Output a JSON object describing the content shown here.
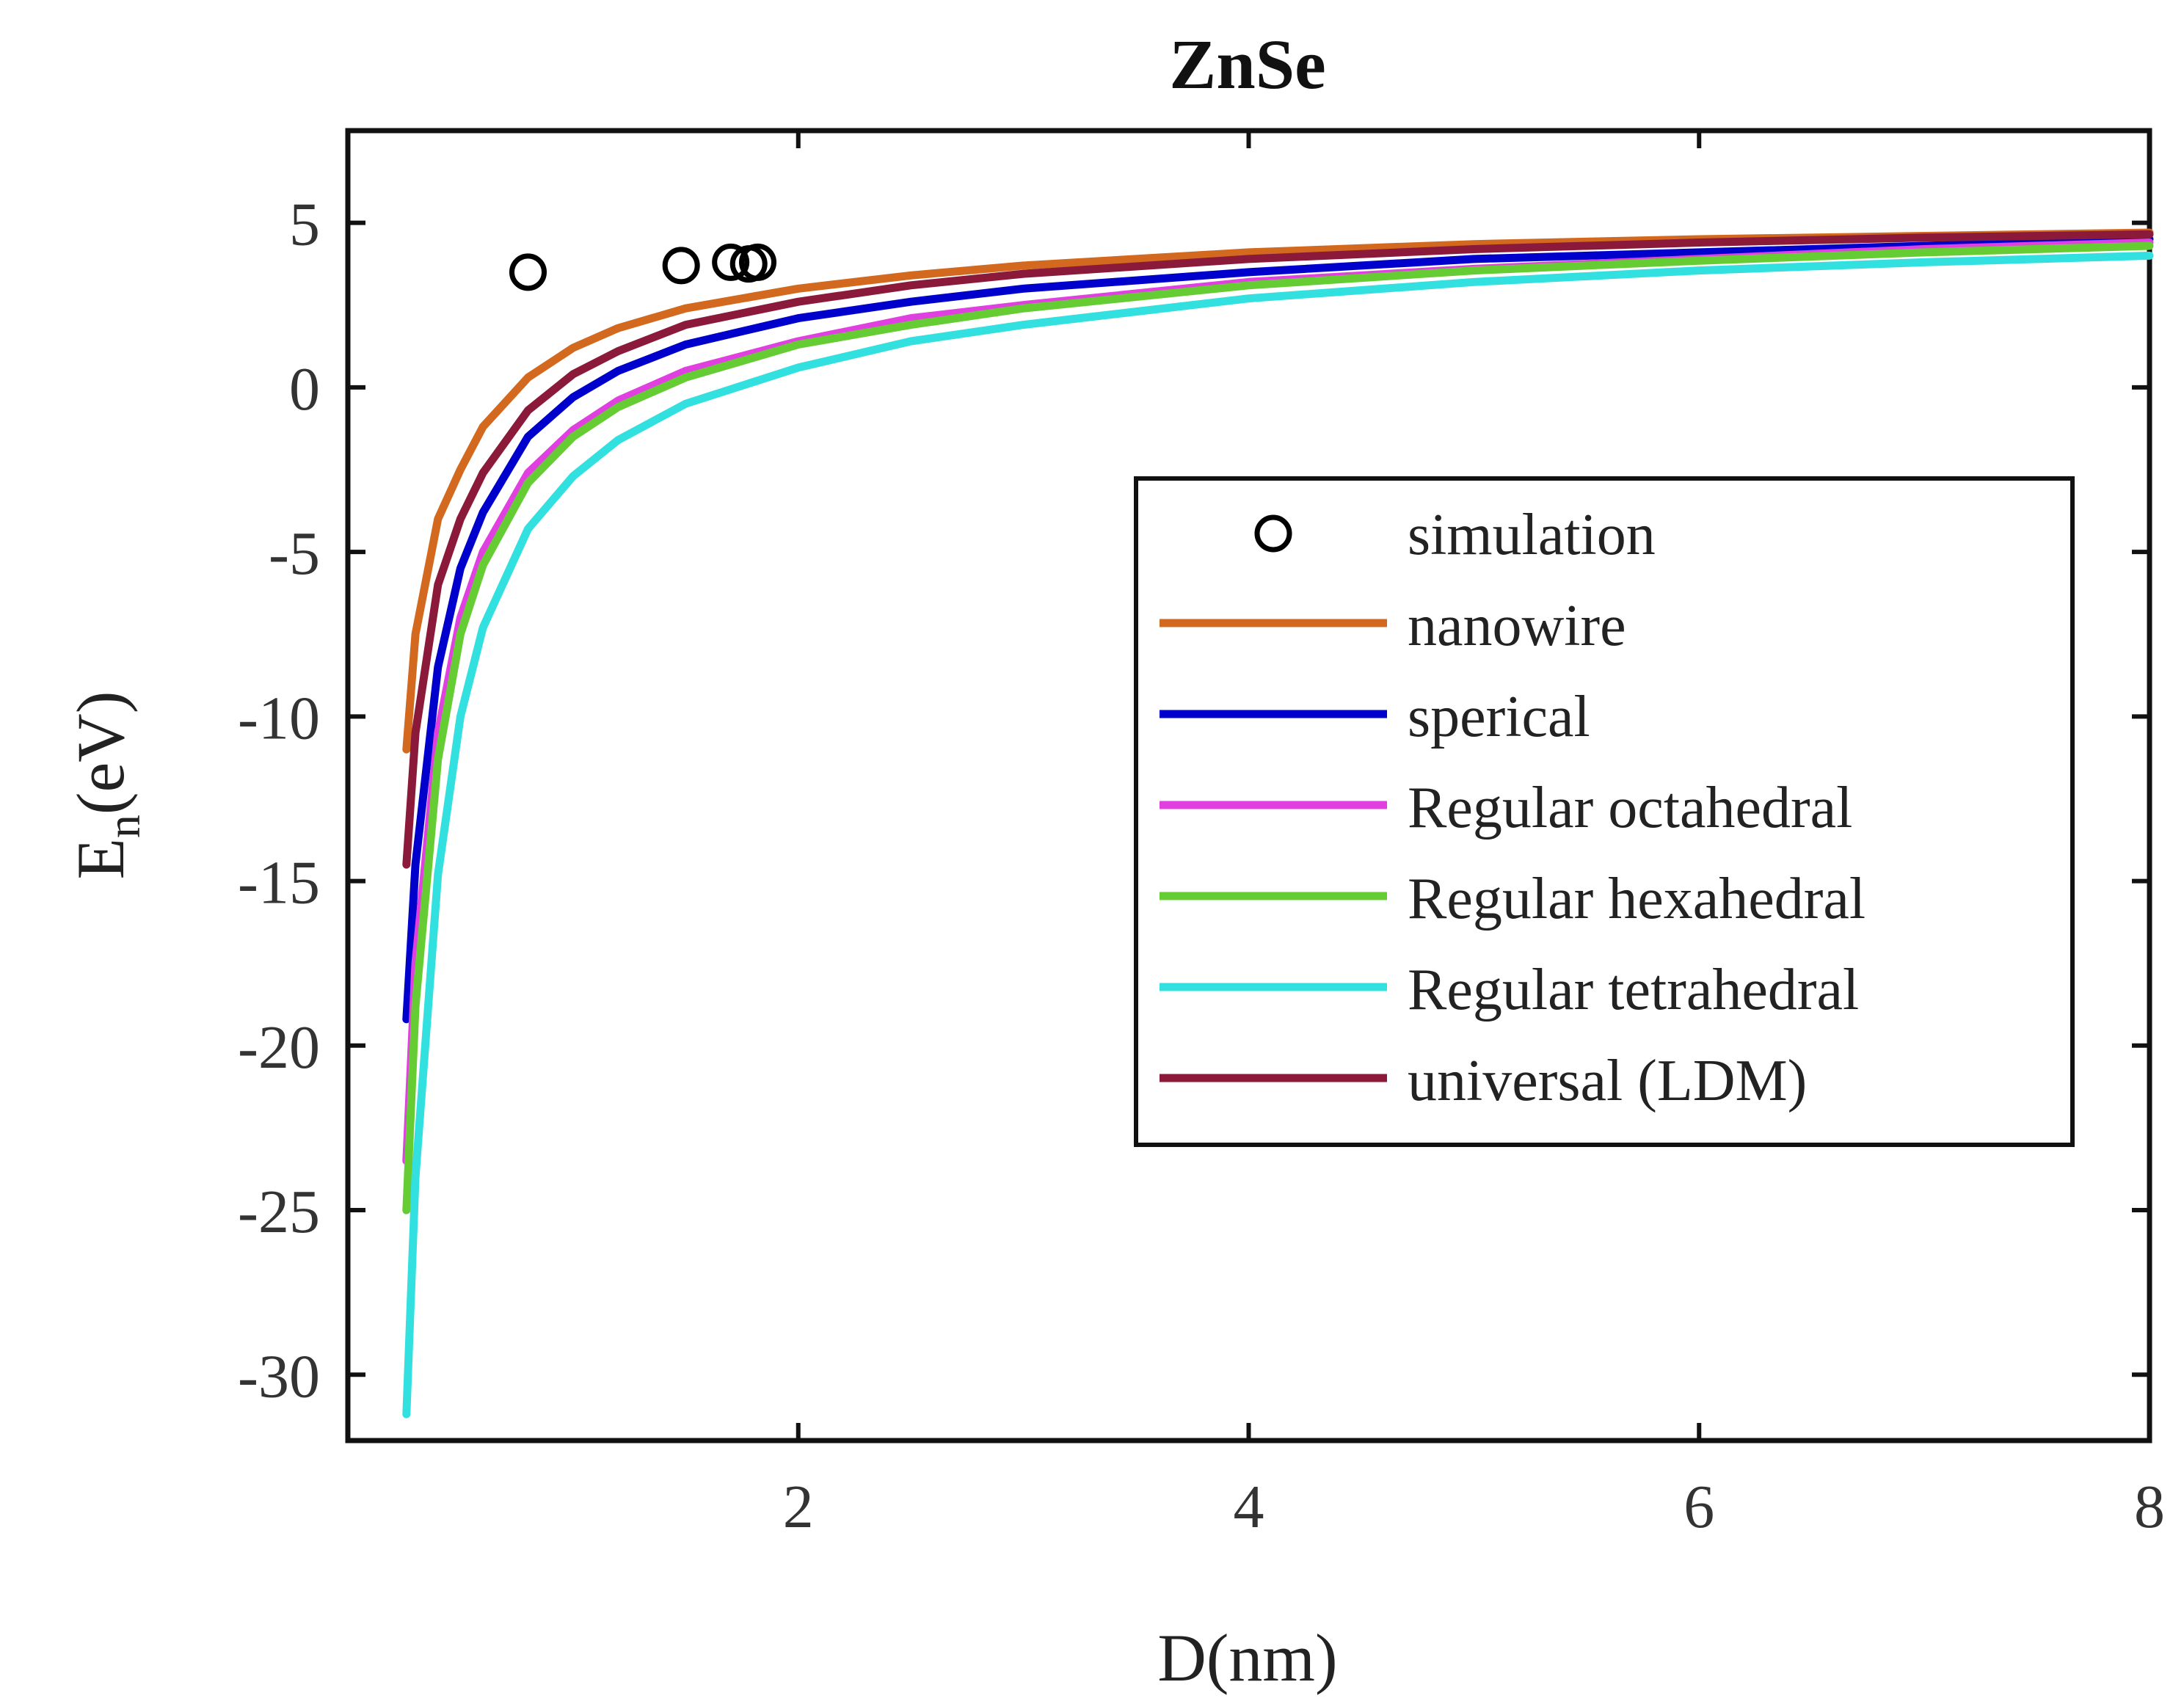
{
  "chart_data": {
    "type": "line",
    "title": "ZnSe",
    "xlabel": "D(nm)",
    "ylabel": {
      "main": "E",
      "sub": "n",
      "unit": "(eV)"
    },
    "xlim": [
      0,
      8
    ],
    "ylim": [
      -32,
      7.8
    ],
    "xticks": [
      2,
      4,
      6,
      8
    ],
    "yticks": [
      5,
      0,
      -5,
      -10,
      -15,
      -20,
      -25,
      -30
    ],
    "legend_position": "center-right",
    "scatter": {
      "name": "simulation",
      "color": "#000000",
      "points": [
        {
          "x": 0.8,
          "y": 3.5
        },
        {
          "x": 1.48,
          "y": 3.7
        },
        {
          "x": 1.7,
          "y": 3.8
        },
        {
          "x": 1.78,
          "y": 3.75
        },
        {
          "x": 1.82,
          "y": 3.8
        }
      ]
    },
    "series": [
      {
        "name": "nanowire",
        "color": "#d2691e",
        "x": [
          0.26,
          0.3,
          0.4,
          0.5,
          0.6,
          0.8,
          1.0,
          1.2,
          1.5,
          2.0,
          2.5,
          3.0,
          4.0,
          5.0,
          6.0,
          7.0,
          8.0
        ],
        "y": [
          -11.0,
          -7.5,
          -4.0,
          -2.5,
          -1.2,
          0.3,
          1.2,
          1.8,
          2.4,
          3.0,
          3.4,
          3.7,
          4.1,
          4.35,
          4.5,
          4.6,
          4.7
        ]
      },
      {
        "name": "sperical",
        "color": "#0000cd",
        "x": [
          0.26,
          0.3,
          0.4,
          0.5,
          0.6,
          0.8,
          1.0,
          1.2,
          1.5,
          2.0,
          2.5,
          3.0,
          4.0,
          5.0,
          6.0,
          7.0,
          8.0
        ],
        "y": [
          -19.2,
          -14.5,
          -8.5,
          -5.5,
          -3.8,
          -1.5,
          -0.3,
          0.5,
          1.3,
          2.1,
          2.6,
          3.0,
          3.5,
          3.9,
          4.1,
          4.3,
          4.5
        ]
      },
      {
        "name": "Regular octahedral",
        "color": "#e040e0",
        "x": [
          0.26,
          0.3,
          0.4,
          0.5,
          0.6,
          0.8,
          1.0,
          1.2,
          1.5,
          2.0,
          2.5,
          3.0,
          4.0,
          5.0,
          6.0,
          7.0,
          8.0
        ],
        "y": [
          -23.5,
          -17.5,
          -10.5,
          -7.0,
          -5.0,
          -2.6,
          -1.3,
          -0.4,
          0.5,
          1.4,
          2.1,
          2.5,
          3.2,
          3.6,
          3.9,
          4.2,
          4.4
        ]
      },
      {
        "name": "Regular hexahedral",
        "color": "#66cc33",
        "x": [
          0.26,
          0.3,
          0.4,
          0.5,
          0.6,
          0.8,
          1.0,
          1.2,
          1.5,
          2.0,
          2.5,
          3.0,
          4.0,
          5.0,
          6.0,
          7.0,
          8.0
        ],
        "y": [
          -25.0,
          -18.8,
          -11.3,
          -7.5,
          -5.4,
          -2.9,
          -1.5,
          -0.6,
          0.3,
          1.3,
          1.9,
          2.4,
          3.1,
          3.55,
          3.85,
          4.1,
          4.3
        ]
      },
      {
        "name": "Regular tetrahedral",
        "color": "#33e0e0",
        "x": [
          0.26,
          0.3,
          0.4,
          0.5,
          0.6,
          0.8,
          1.0,
          1.2,
          1.5,
          2.0,
          2.5,
          3.0,
          4.0,
          5.0,
          6.0,
          7.0,
          8.0
        ],
        "y": [
          -31.2,
          -24.0,
          -14.8,
          -10.0,
          -7.3,
          -4.3,
          -2.7,
          -1.6,
          -0.5,
          0.6,
          1.4,
          1.9,
          2.7,
          3.2,
          3.55,
          3.8,
          4.0
        ]
      },
      {
        "name": "universal (LDM)",
        "color": "#8b1a3a",
        "x": [
          0.26,
          0.3,
          0.4,
          0.5,
          0.6,
          0.8,
          1.0,
          1.2,
          1.5,
          2.0,
          2.5,
          3.0,
          4.0,
          5.0,
          6.0,
          7.0,
          8.0
        ],
        "y": [
          -14.5,
          -10.5,
          -6.0,
          -4.0,
          -2.6,
          -0.7,
          0.4,
          1.1,
          1.9,
          2.6,
          3.1,
          3.45,
          3.9,
          4.2,
          4.4,
          4.55,
          4.65
        ]
      }
    ]
  }
}
